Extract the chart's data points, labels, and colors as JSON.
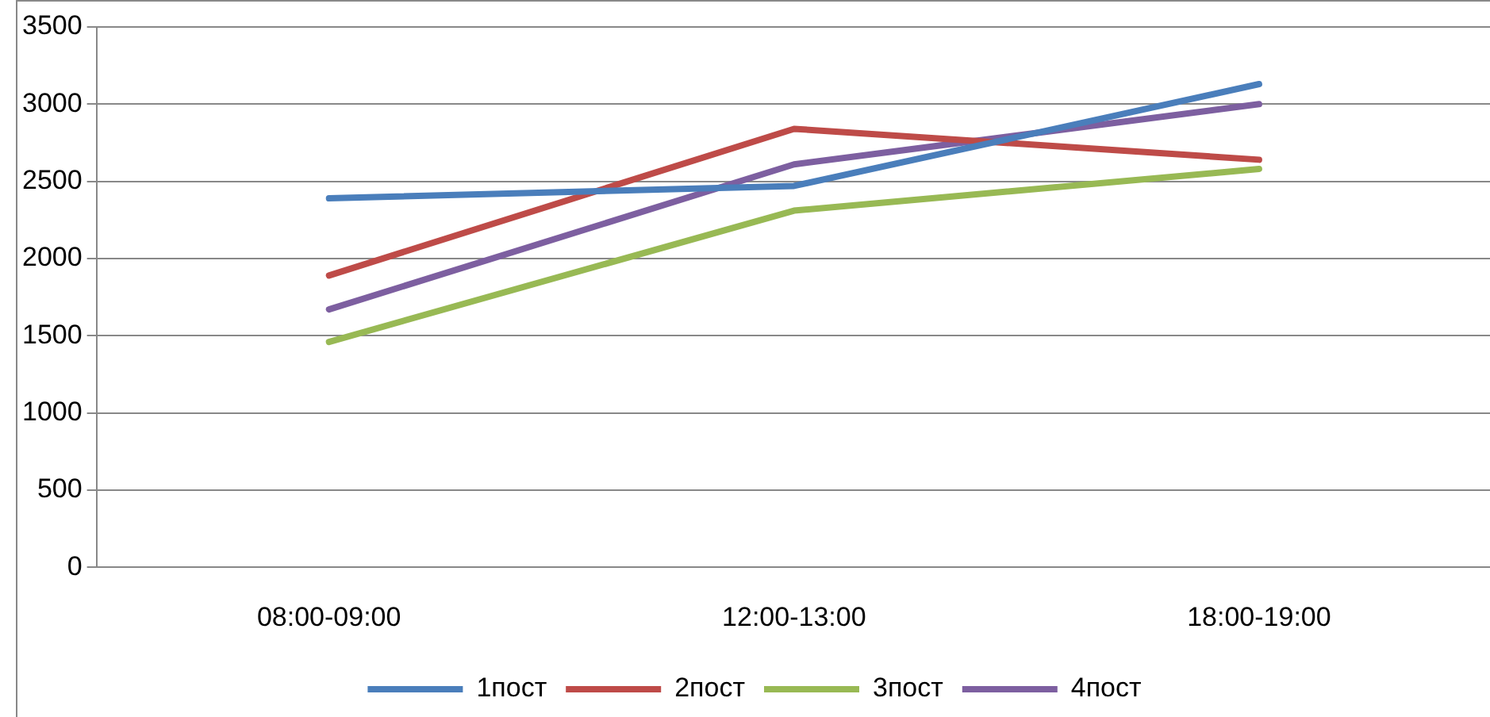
{
  "chart_data": {
    "type": "line",
    "categories": [
      "08:00-09:00",
      "12:00-13:00",
      "18:00-19:00"
    ],
    "series": [
      {
        "name": "1пост",
        "color": "#4a7ebb",
        "values": [
          2390,
          2470,
          3130
        ]
      },
      {
        "name": "2пост",
        "color": "#be4b48",
        "values": [
          1890,
          2840,
          2640
        ]
      },
      {
        "name": "3пост",
        "color": "#98b954",
        "values": [
          1460,
          2310,
          2580
        ]
      },
      {
        "name": "4пост",
        "color": "#7d5fa0",
        "values": [
          1670,
          2610,
          3000
        ]
      }
    ],
    "ylim": [
      0,
      3500
    ],
    "yticks": [
      0,
      500,
      1000,
      1500,
      2000,
      2500,
      3000,
      3500
    ],
    "grid": "y",
    "legend": "bottom",
    "marker": "none",
    "line_style": "solid"
  }
}
